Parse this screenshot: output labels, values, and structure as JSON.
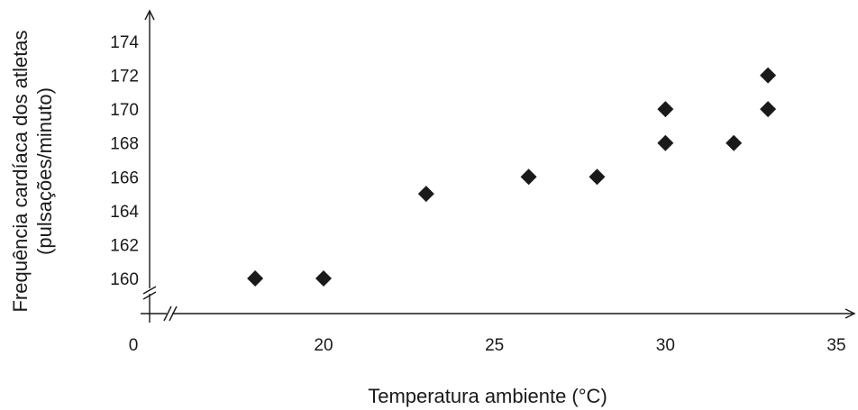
{
  "chart_data": {
    "type": "scatter",
    "title": "",
    "xlabel": "Temperatura ambiente (°C)",
    "ylabel_lines": [
      "Frequência cardíaca dos atletas",
      "(pulsações/minuto)"
    ],
    "xlim": [
      0,
      35
    ],
    "ylim": [
      160,
      174
    ],
    "x_ticks": [
      0,
      20,
      25,
      30,
      35
    ],
    "y_ticks": [
      160,
      162,
      164,
      166,
      168,
      170,
      172,
      174
    ],
    "axis_breaks": [
      "x",
      "y"
    ],
    "grid": false,
    "legend": "none",
    "marker": "diamond",
    "marker_color": "#1a1a1a",
    "points": [
      {
        "x": 18,
        "y": 160
      },
      {
        "x": 20,
        "y": 160
      },
      {
        "x": 23,
        "y": 165
      },
      {
        "x": 26,
        "y": 166
      },
      {
        "x": 28,
        "y": 166
      },
      {
        "x": 30,
        "y": 168
      },
      {
        "x": 30,
        "y": 170
      },
      {
        "x": 32,
        "y": 168
      },
      {
        "x": 33,
        "y": 170
      },
      {
        "x": 33,
        "y": 172
      }
    ]
  }
}
